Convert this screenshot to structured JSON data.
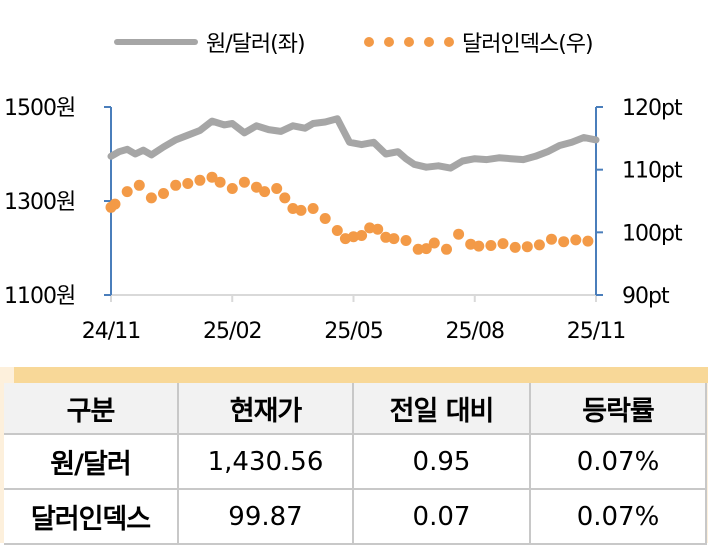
{
  "legend": {
    "series1_label": "원/달러(좌)",
    "series2_label": "달러인덱스(우)"
  },
  "axes": {
    "left_ticks": [
      "1500원",
      "1300원",
      "1100원"
    ],
    "right_ticks": [
      "120pt",
      "110pt",
      "100pt",
      "90pt"
    ],
    "x_ticks": [
      "24/11",
      "25/02",
      "25/05",
      "25/08",
      "25/11"
    ]
  },
  "colors": {
    "krw_line": "#a6a6a6",
    "dxy_dots": "#f39a47",
    "axis_blue": "#4a7ebb",
    "grid": "#d9d9d9",
    "table_band": "#f8d898",
    "table_bg": "#fdf0dc"
  },
  "table": {
    "headers": [
      "구분",
      "현재가",
      "전일 대비",
      "등락률"
    ],
    "rows": [
      [
        "원/달러",
        "1,430.56",
        "0.95",
        "0.07%"
      ],
      [
        "달러인덱스",
        "99.87",
        "0.07",
        "0.07%"
      ]
    ]
  },
  "chart_data": {
    "type": "line",
    "title": "",
    "xlabel": "",
    "ylabel": "원/달러 (좌), 달러인덱스 (우)",
    "legend_position": "top",
    "grid": false,
    "x_ticks": [
      "24/11",
      "25/02",
      "25/05",
      "25/08",
      "25/11"
    ],
    "series": [
      {
        "name": "원/달러(좌)",
        "axis": "left",
        "ylim": [
          1100,
          1500
        ],
        "style": "line",
        "x": [
          0.0,
          0.2,
          0.4,
          0.6,
          0.8,
          1.0,
          1.3,
          1.6,
          1.9,
          2.2,
          2.5,
          2.8,
          3.0,
          3.3,
          3.6,
          3.9,
          4.2,
          4.5,
          4.8,
          5.0,
          5.3,
          5.6,
          5.9,
          6.2,
          6.5,
          6.8,
          7.1,
          7.3,
          7.5,
          7.8,
          8.1,
          8.4,
          8.7,
          9.0,
          9.3,
          9.6,
          9.9,
          10.2,
          10.5,
          10.8,
          11.1,
          11.4,
          11.7,
          12.0
        ],
        "values": [
          1395,
          1405,
          1410,
          1400,
          1408,
          1398,
          1415,
          1430,
          1440,
          1450,
          1470,
          1462,
          1465,
          1445,
          1460,
          1452,
          1448,
          1460,
          1455,
          1465,
          1468,
          1475,
          1425,
          1420,
          1425,
          1400,
          1405,
          1390,
          1378,
          1372,
          1375,
          1370,
          1385,
          1390,
          1388,
          1392,
          1390,
          1388,
          1395,
          1405,
          1418,
          1425,
          1435,
          1430
        ]
      },
      {
        "name": "달러인덱스(우)",
        "axis": "right",
        "ylim": [
          90,
          120
        ],
        "style": "dots",
        "x": [
          0.0,
          0.1,
          0.4,
          0.7,
          1.0,
          1.3,
          1.6,
          1.9,
          2.2,
          2.5,
          2.7,
          3.0,
          3.3,
          3.6,
          3.8,
          4.1,
          4.3,
          4.5,
          4.7,
          5.0,
          5.3,
          5.6,
          5.8,
          6.0,
          6.2,
          6.4,
          6.6,
          6.8,
          7.0,
          7.3,
          7.6,
          7.8,
          8.0,
          8.3,
          8.6,
          8.9,
          9.1,
          9.4,
          9.7,
          10.0,
          10.3,
          10.6,
          10.9,
          11.2,
          11.5,
          11.8
        ],
        "values": [
          104.0,
          104.5,
          106.5,
          107.5,
          105.5,
          106.2,
          107.5,
          107.8,
          108.3,
          108.8,
          108.0,
          107.0,
          108.0,
          107.2,
          106.5,
          107.0,
          105.5,
          103.8,
          103.5,
          103.8,
          102.2,
          100.3,
          99.0,
          99.3,
          99.5,
          100.7,
          100.5,
          99.2,
          99.0,
          98.7,
          97.3,
          97.4,
          98.3,
          97.3,
          99.7,
          98.1,
          97.8,
          97.9,
          98.2,
          97.6,
          97.7,
          98.0,
          98.9,
          98.5,
          98.8,
          98.6
        ]
      }
    ]
  }
}
